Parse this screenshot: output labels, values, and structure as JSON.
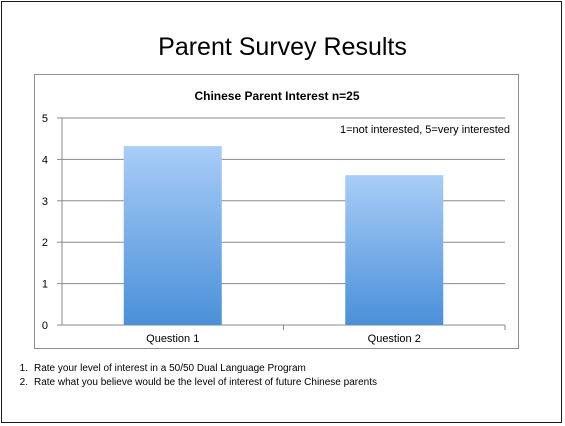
{
  "slide": {
    "title": "Parent Survey Results"
  },
  "chart_data": {
    "type": "bar",
    "title": "Chinese Parent Interest n=25",
    "annotation": "1=not interested, 5=very interested",
    "categories": [
      "Question 1",
      "Question 2"
    ],
    "values": [
      4.32,
      3.62
    ],
    "ylim": [
      0,
      5
    ],
    "yticks": [
      "0",
      "1",
      "2",
      "3",
      "4",
      "5"
    ],
    "xlabel": "",
    "ylabel": "",
    "grid": true,
    "legend": "none",
    "bar_color_top": "#a9cdf7",
    "bar_color_bottom": "#4a90d9"
  },
  "footnotes": [
    {
      "num": "1.",
      "text": "Rate your level of interest in a 50/50 Dual Language Program"
    },
    {
      "num": "2.",
      "text": "Rate what you believe would be the level of interest of future Chinese parents"
    }
  ]
}
